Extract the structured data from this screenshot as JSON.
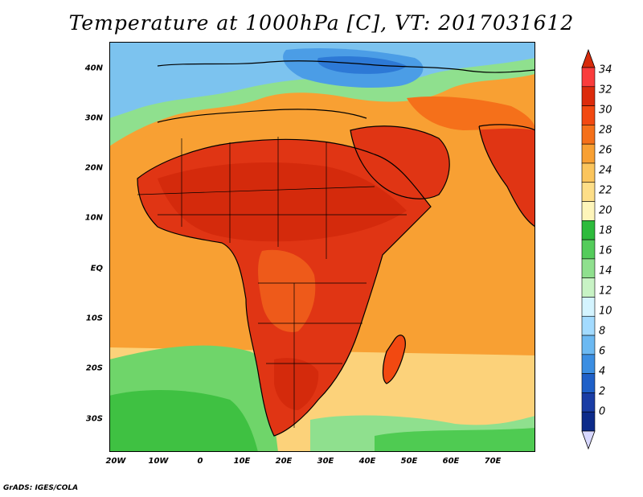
{
  "title": "Temperature at 1000hPa [C], VT: 2017031612",
  "footer": "GrADS: IGES/COLA",
  "lat_ticks": [
    "40N",
    "30N",
    "20N",
    "10N",
    "EQ",
    "10S",
    "20S",
    "30S"
  ],
  "lon_ticks": [
    "20W",
    "10W",
    "0",
    "10E",
    "20E",
    "30E",
    "40E",
    "50E",
    "60E",
    "70E"
  ],
  "colorbar": {
    "labels": [
      "34",
      "32",
      "30",
      "28",
      "26",
      "24",
      "22",
      "20",
      "18",
      "16",
      "14",
      "12",
      "10",
      "8",
      "6",
      "4",
      "2",
      "0"
    ],
    "colors": [
      "#fa3c3c",
      "#dc2b0c",
      "#f24911",
      "#f5701a",
      "#f8a033",
      "#fbc55d",
      "#fdde88",
      "#fef5ba",
      "#2dbb3c",
      "#54cc5b",
      "#8fe08e",
      "#c8f3c5",
      "#d4f4ff",
      "#a3dbff",
      "#6cb9f2",
      "#3b8ee2",
      "#1f60c8",
      "#1a3da5",
      "#0d2b8a"
    ],
    "top_triangle_color": "#d72b0c",
    "bottom_triangle_color": "#d8d8ff"
  },
  "colors": {
    "ocean_warm": "#f8a033",
    "land_hot": "#e03514",
    "land_very_hot": "#d42a0c",
    "north_cool": "#7cc3ef",
    "mediterranean": "#4b9de6",
    "south_ocean_green": "#5fd05f"
  }
}
